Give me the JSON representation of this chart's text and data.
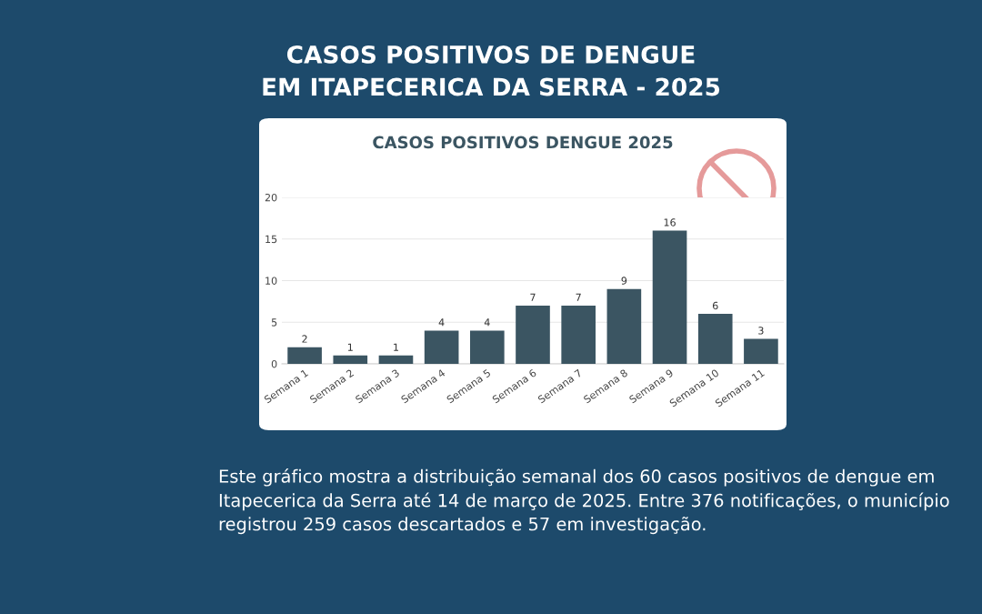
{
  "chart_data": {
    "type": "bar",
    "title": "CASOS POSITIVOS DENGUE 2025",
    "subtitle": "CASOS POSITIVOS DE DENGUE\nEM ITAPECERICA DA SERRA - 2025",
    "categories": [
      "Semana 1",
      "Semana 2",
      "Semana 3",
      "Semana 4",
      "Semana 5",
      "Semana 6",
      "Semana 7",
      "Semana 8",
      "Semana 9",
      "Semana 10",
      "Semana 11"
    ],
    "values": [
      2,
      1,
      1,
      4,
      4,
      7,
      7,
      9,
      16,
      6,
      3
    ],
    "color": "#3b5562",
    "ylim": [
      0,
      20
    ],
    "yticks": [
      0,
      5,
      10,
      15,
      20
    ],
    "grid": "y",
    "data_labels": true,
    "annotations": [
      "Este gráfico mostra a distribuição semanal dos 60 casos positivos de dengue em Itapecerica da Serra até 14 de março de 2025. Entre 376 notificações, o município registrou 259 casos descartados e 57 em investigação."
    ]
  }
}
